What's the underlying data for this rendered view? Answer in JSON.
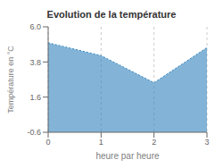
{
  "chart_data": {
    "type": "area",
    "title": "Evolution de la température",
    "xlabel": "heure par heure",
    "ylabel": "Température en °C",
    "x": [
      0,
      1,
      2,
      3
    ],
    "values": [
      5.0,
      4.2,
      2.5,
      4.7
    ],
    "xlim": [
      0,
      3
    ],
    "ylim": [
      -0.6,
      6.0
    ],
    "xticks": [
      0,
      1,
      2,
      3
    ],
    "yticks": [
      -0.6,
      1.6,
      3.8,
      {
        "value": 6.0,
        "label": "6.0"
      }
    ],
    "line_style": "dotted",
    "grid": "x"
  }
}
